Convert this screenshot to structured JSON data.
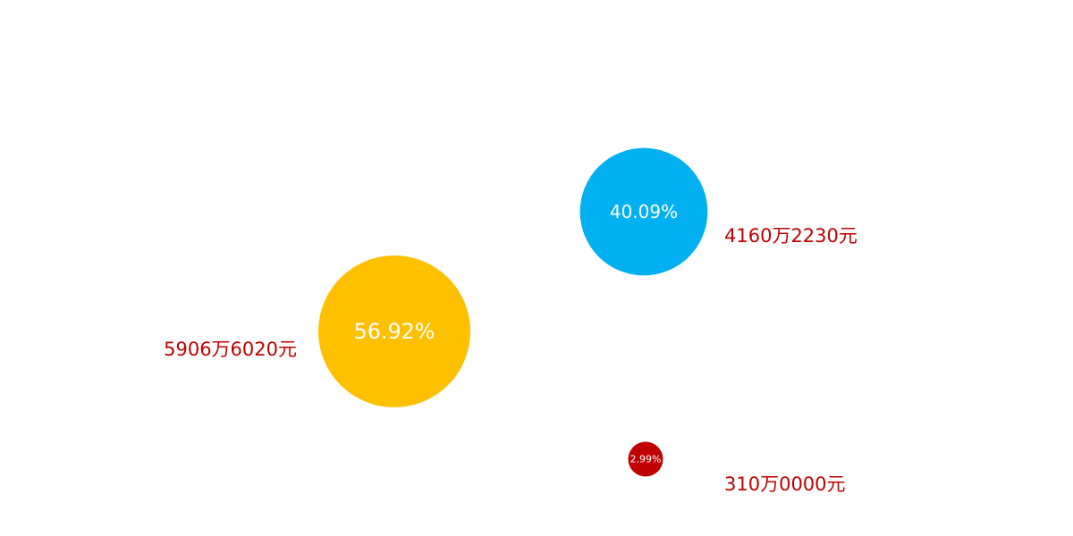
{
  "chart_data": {
    "type": "bubble",
    "title": "",
    "legend": "none",
    "grid": false,
    "axes_visible": false,
    "label_color": "#c00000",
    "series": [
      {
        "share_label": "56.92%",
        "percent": 56.92,
        "amount_label": "5906万6020元",
        "color": "#ffc000"
      },
      {
        "share_label": "40.09%",
        "percent": 40.09,
        "amount_label": "4160万2230元",
        "color": "#00b0f0"
      },
      {
        "share_label": "2.99%",
        "percent": 2.99,
        "amount_label": "310万0000元",
        "color": "#c00000"
      }
    ]
  }
}
